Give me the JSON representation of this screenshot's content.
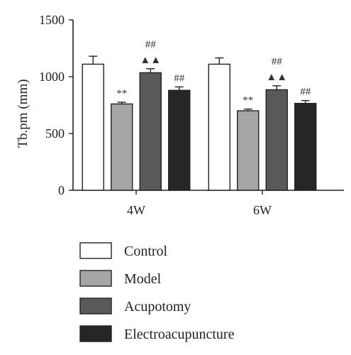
{
  "chart_data": {
    "type": "bar",
    "ylabel": "Tb.pm (mm)",
    "xlabel": "",
    "ylim": [
      0,
      1500
    ],
    "yticks": [
      0,
      500,
      1000,
      1500
    ],
    "categories": [
      "4W",
      "6W"
    ],
    "series": [
      {
        "name": "Control",
        "color": "#ffffff",
        "values": [
          1110,
          1110
        ],
        "errors": [
          70,
          55
        ],
        "annotations": [
          "",
          ""
        ]
      },
      {
        "name": "Model",
        "color": "#a6a6a6",
        "values": [
          760,
          700
        ],
        "errors": [
          15,
          15
        ],
        "annotations": [
          "**",
          "**"
        ]
      },
      {
        "name": "Acupotomy",
        "color": "#595959",
        "values": [
          1035,
          885
        ],
        "errors": [
          35,
          35
        ],
        "annotations": [
          "##\n▲▲",
          "##\n▲▲"
        ]
      },
      {
        "name": "Electroacupuncture",
        "color": "#262626",
        "values": [
          880,
          765
        ],
        "errors": [
          30,
          25
        ],
        "annotations": [
          "##",
          "##"
        ]
      }
    ],
    "grid": false,
    "legend_position": "bottom"
  }
}
